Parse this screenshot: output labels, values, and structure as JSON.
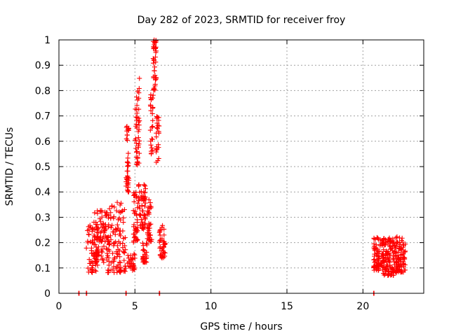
{
  "chart_data": {
    "type": "scatter",
    "title": "Day 282 of 2023, SRMTID for receiver froy",
    "xlabel": "GPS time / hours",
    "ylabel": "SRMTID / TECUs",
    "xlim": [
      0,
      24
    ],
    "ylim": [
      0,
      1
    ],
    "xticks": [
      0,
      5,
      10,
      15,
      20
    ],
    "yticks": [
      0,
      0.1,
      0.2,
      0.3,
      0.4,
      0.5,
      0.6,
      0.7,
      0.8,
      0.9,
      1
    ],
    "xtick_labels": [
      "0",
      "5",
      "10",
      "15",
      "20"
    ],
    "ytick_labels": [
      "0",
      "0.1",
      "0.2",
      "0.3",
      "0.4",
      "0.5",
      "0.6",
      "0.7",
      "0.8",
      "0.9",
      "1"
    ],
    "grid": true,
    "marker": "+",
    "series_color": "#ff0000",
    "zero_points": [
      1.3,
      1.8,
      4.4,
      6.6,
      20.7
    ],
    "clusters": [
      {
        "x_start": 1.8,
        "x_end": 2.6,
        "y_min": 0.08,
        "y_max": 0.27,
        "count": 70
      },
      {
        "x_start": 2.3,
        "x_end": 3.3,
        "y_min": 0.12,
        "y_max": 0.33,
        "count": 90
      },
      {
        "x_start": 3.2,
        "x_end": 4.4,
        "y_min": 0.08,
        "y_max": 0.36,
        "count": 110
      },
      {
        "x_start": 4.4,
        "x_end": 4.6,
        "y_min": 0.4,
        "y_max": 0.66,
        "count": 40
      },
      {
        "x_start": 4.5,
        "x_end": 5.0,
        "y_min": 0.09,
        "y_max": 0.16,
        "count": 30
      },
      {
        "x_start": 4.9,
        "x_end": 5.2,
        "y_min": 0.2,
        "y_max": 0.4,
        "count": 40
      },
      {
        "x_start": 5.0,
        "x_end": 5.3,
        "y_min": 0.5,
        "y_max": 0.85,
        "count": 45
      },
      {
        "x_start": 5.2,
        "x_end": 5.7,
        "y_min": 0.25,
        "y_max": 0.43,
        "count": 55
      },
      {
        "x_start": 5.5,
        "x_end": 5.8,
        "y_min": 0.12,
        "y_max": 0.2,
        "count": 30
      },
      {
        "x_start": 5.8,
        "x_end": 6.1,
        "y_min": 0.2,
        "y_max": 0.38,
        "count": 35
      },
      {
        "x_start": 6.0,
        "x_end": 6.2,
        "y_min": 0.55,
        "y_max": 0.8,
        "count": 25
      },
      {
        "x_start": 6.2,
        "x_end": 6.4,
        "y_min": 0.8,
        "y_max": 1.0,
        "count": 40
      },
      {
        "x_start": 6.4,
        "x_end": 6.6,
        "y_min": 0.5,
        "y_max": 0.7,
        "count": 25
      },
      {
        "x_start": 6.6,
        "x_end": 7.0,
        "y_min": 0.13,
        "y_max": 0.27,
        "count": 40
      },
      {
        "x_start": 20.7,
        "x_end": 21.4,
        "y_min": 0.09,
        "y_max": 0.22,
        "count": 80
      },
      {
        "x_start": 21.3,
        "x_end": 22.2,
        "y_min": 0.07,
        "y_max": 0.22,
        "count": 110
      },
      {
        "x_start": 22.1,
        "x_end": 22.8,
        "y_min": 0.08,
        "y_max": 0.23,
        "count": 90
      }
    ]
  }
}
